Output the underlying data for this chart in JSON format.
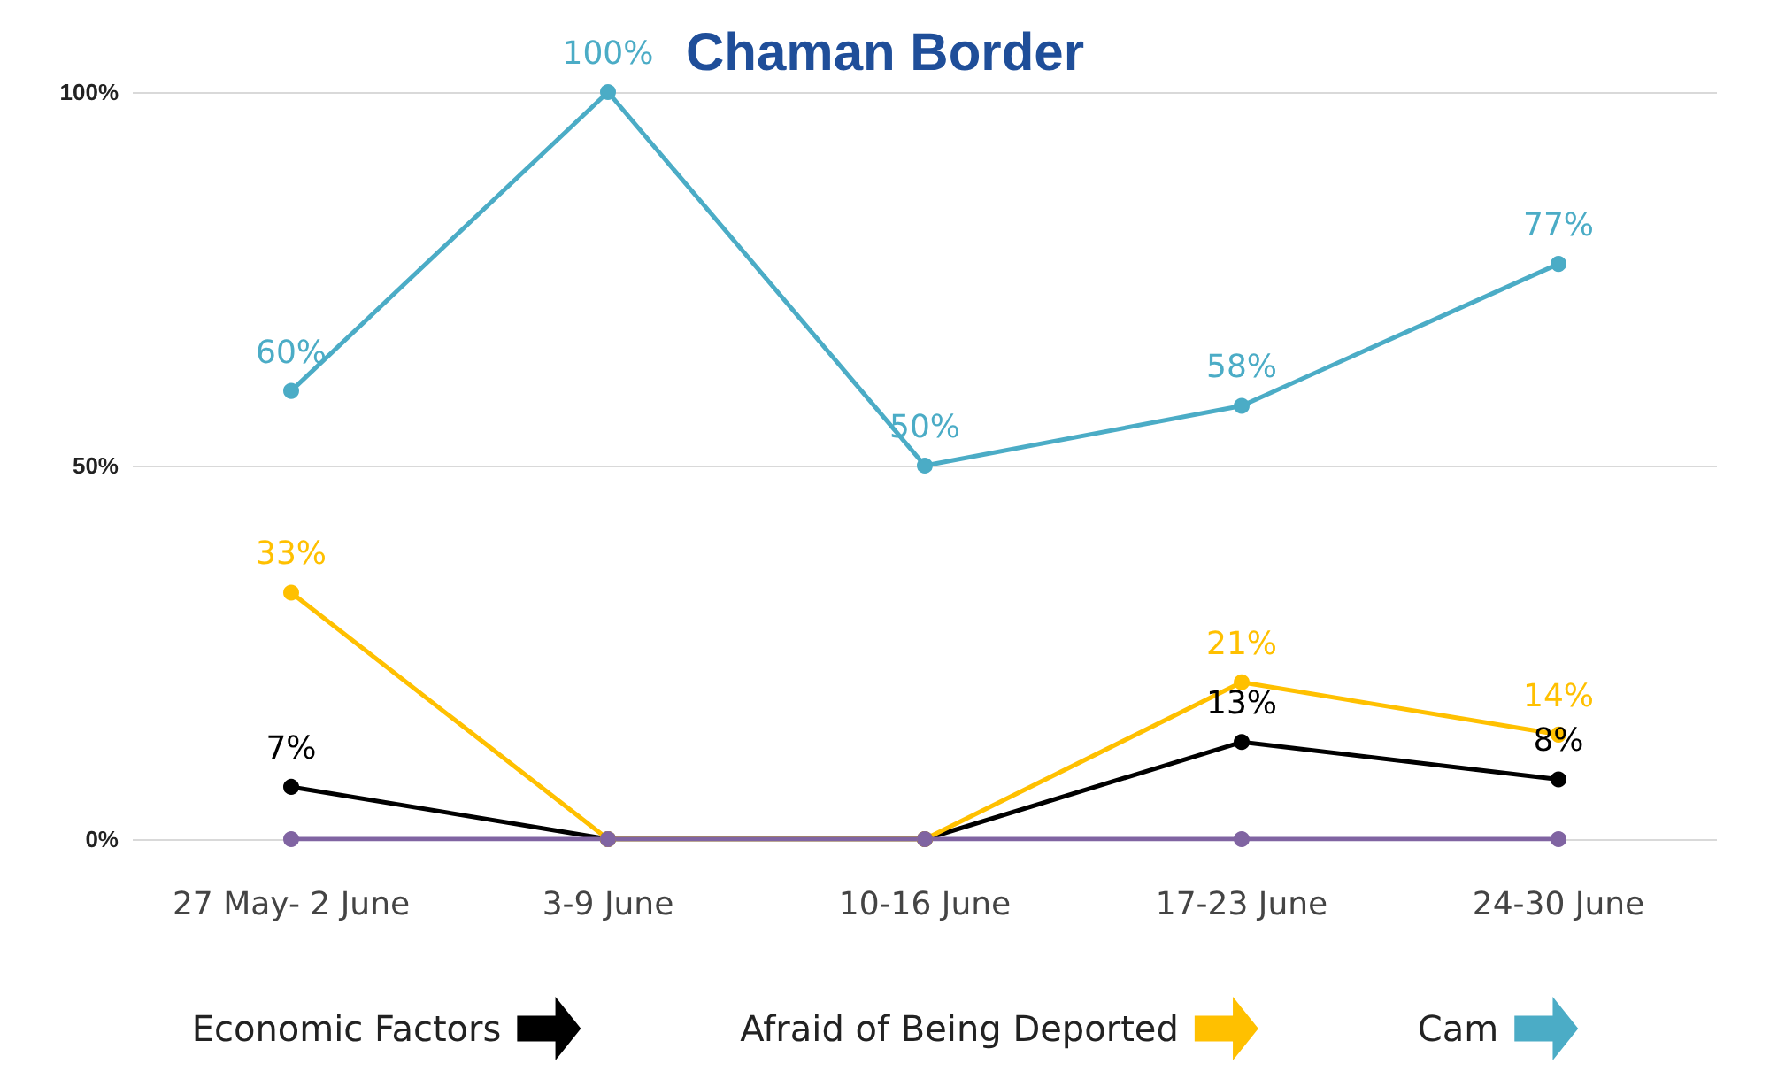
{
  "chart_data": {
    "type": "line",
    "title": "Chaman Border",
    "categories": [
      "27 May- 2 June",
      "3-9 June",
      "10-16 June",
      "17-23 June",
      "24-30 June"
    ],
    "series": [
      {
        "name": "Economic Factors",
        "color": "#000000",
        "values": [
          7,
          0,
          0,
          13,
          8
        ],
        "value_labels": [
          "7%",
          null,
          null,
          "13%",
          "8%"
        ]
      },
      {
        "name": "Afraid of Being Deported",
        "color": "#ffc000",
        "values": [
          33,
          0,
          0,
          21,
          14
        ],
        "value_labels": [
          "33%",
          null,
          null,
          "21%",
          "14%"
        ]
      },
      {
        "name": "Cam",
        "color": "#4bacc6",
        "values": [
          60,
          100,
          50,
          58,
          77
        ],
        "value_labels": [
          "60%",
          "100%",
          "50%",
          "58%",
          "77%"
        ]
      },
      {
        "color": "#8064a2",
        "values": [
          0,
          0,
          0,
          0,
          0
        ]
      }
    ],
    "ylim": [
      0,
      100
    ],
    "yticks": [
      {
        "value": 0,
        "label": "0%"
      },
      {
        "value": 50,
        "label": "50%"
      },
      {
        "value": 100,
        "label": "100%"
      }
    ],
    "grid": "y",
    "legend": "bottom",
    "marker": "circle",
    "line_style": "solid"
  }
}
